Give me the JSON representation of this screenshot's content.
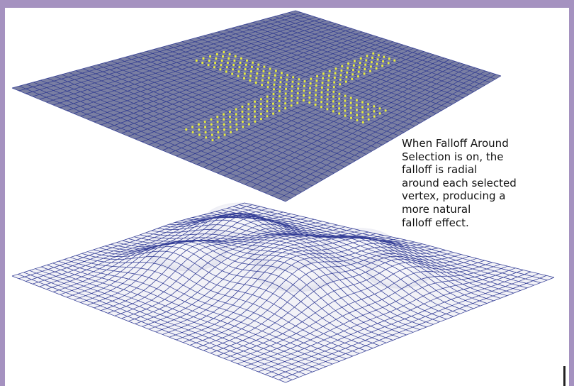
{
  "caption": {
    "lines": [
      "When Falloff Around",
      "Selection is on, the",
      "falloff is radial",
      "around each selected",
      "vertex, producing a",
      "more natural",
      "falloff effect."
    ]
  },
  "colors": {
    "page_border": "#a592c0",
    "frame_background": "#ffffff",
    "flat_plane_fill": "#7a7fa3",
    "wire_dark": "#1f2a8c",
    "selected_vertex": "#e8ec3c",
    "deformed_surface": "#f2f2f7"
  },
  "illustration": {
    "top_plane": "flat wireframe plane with X-shaped vertex selection",
    "bottom_plane": "wireframe plane deformed with radial falloff bumps"
  }
}
